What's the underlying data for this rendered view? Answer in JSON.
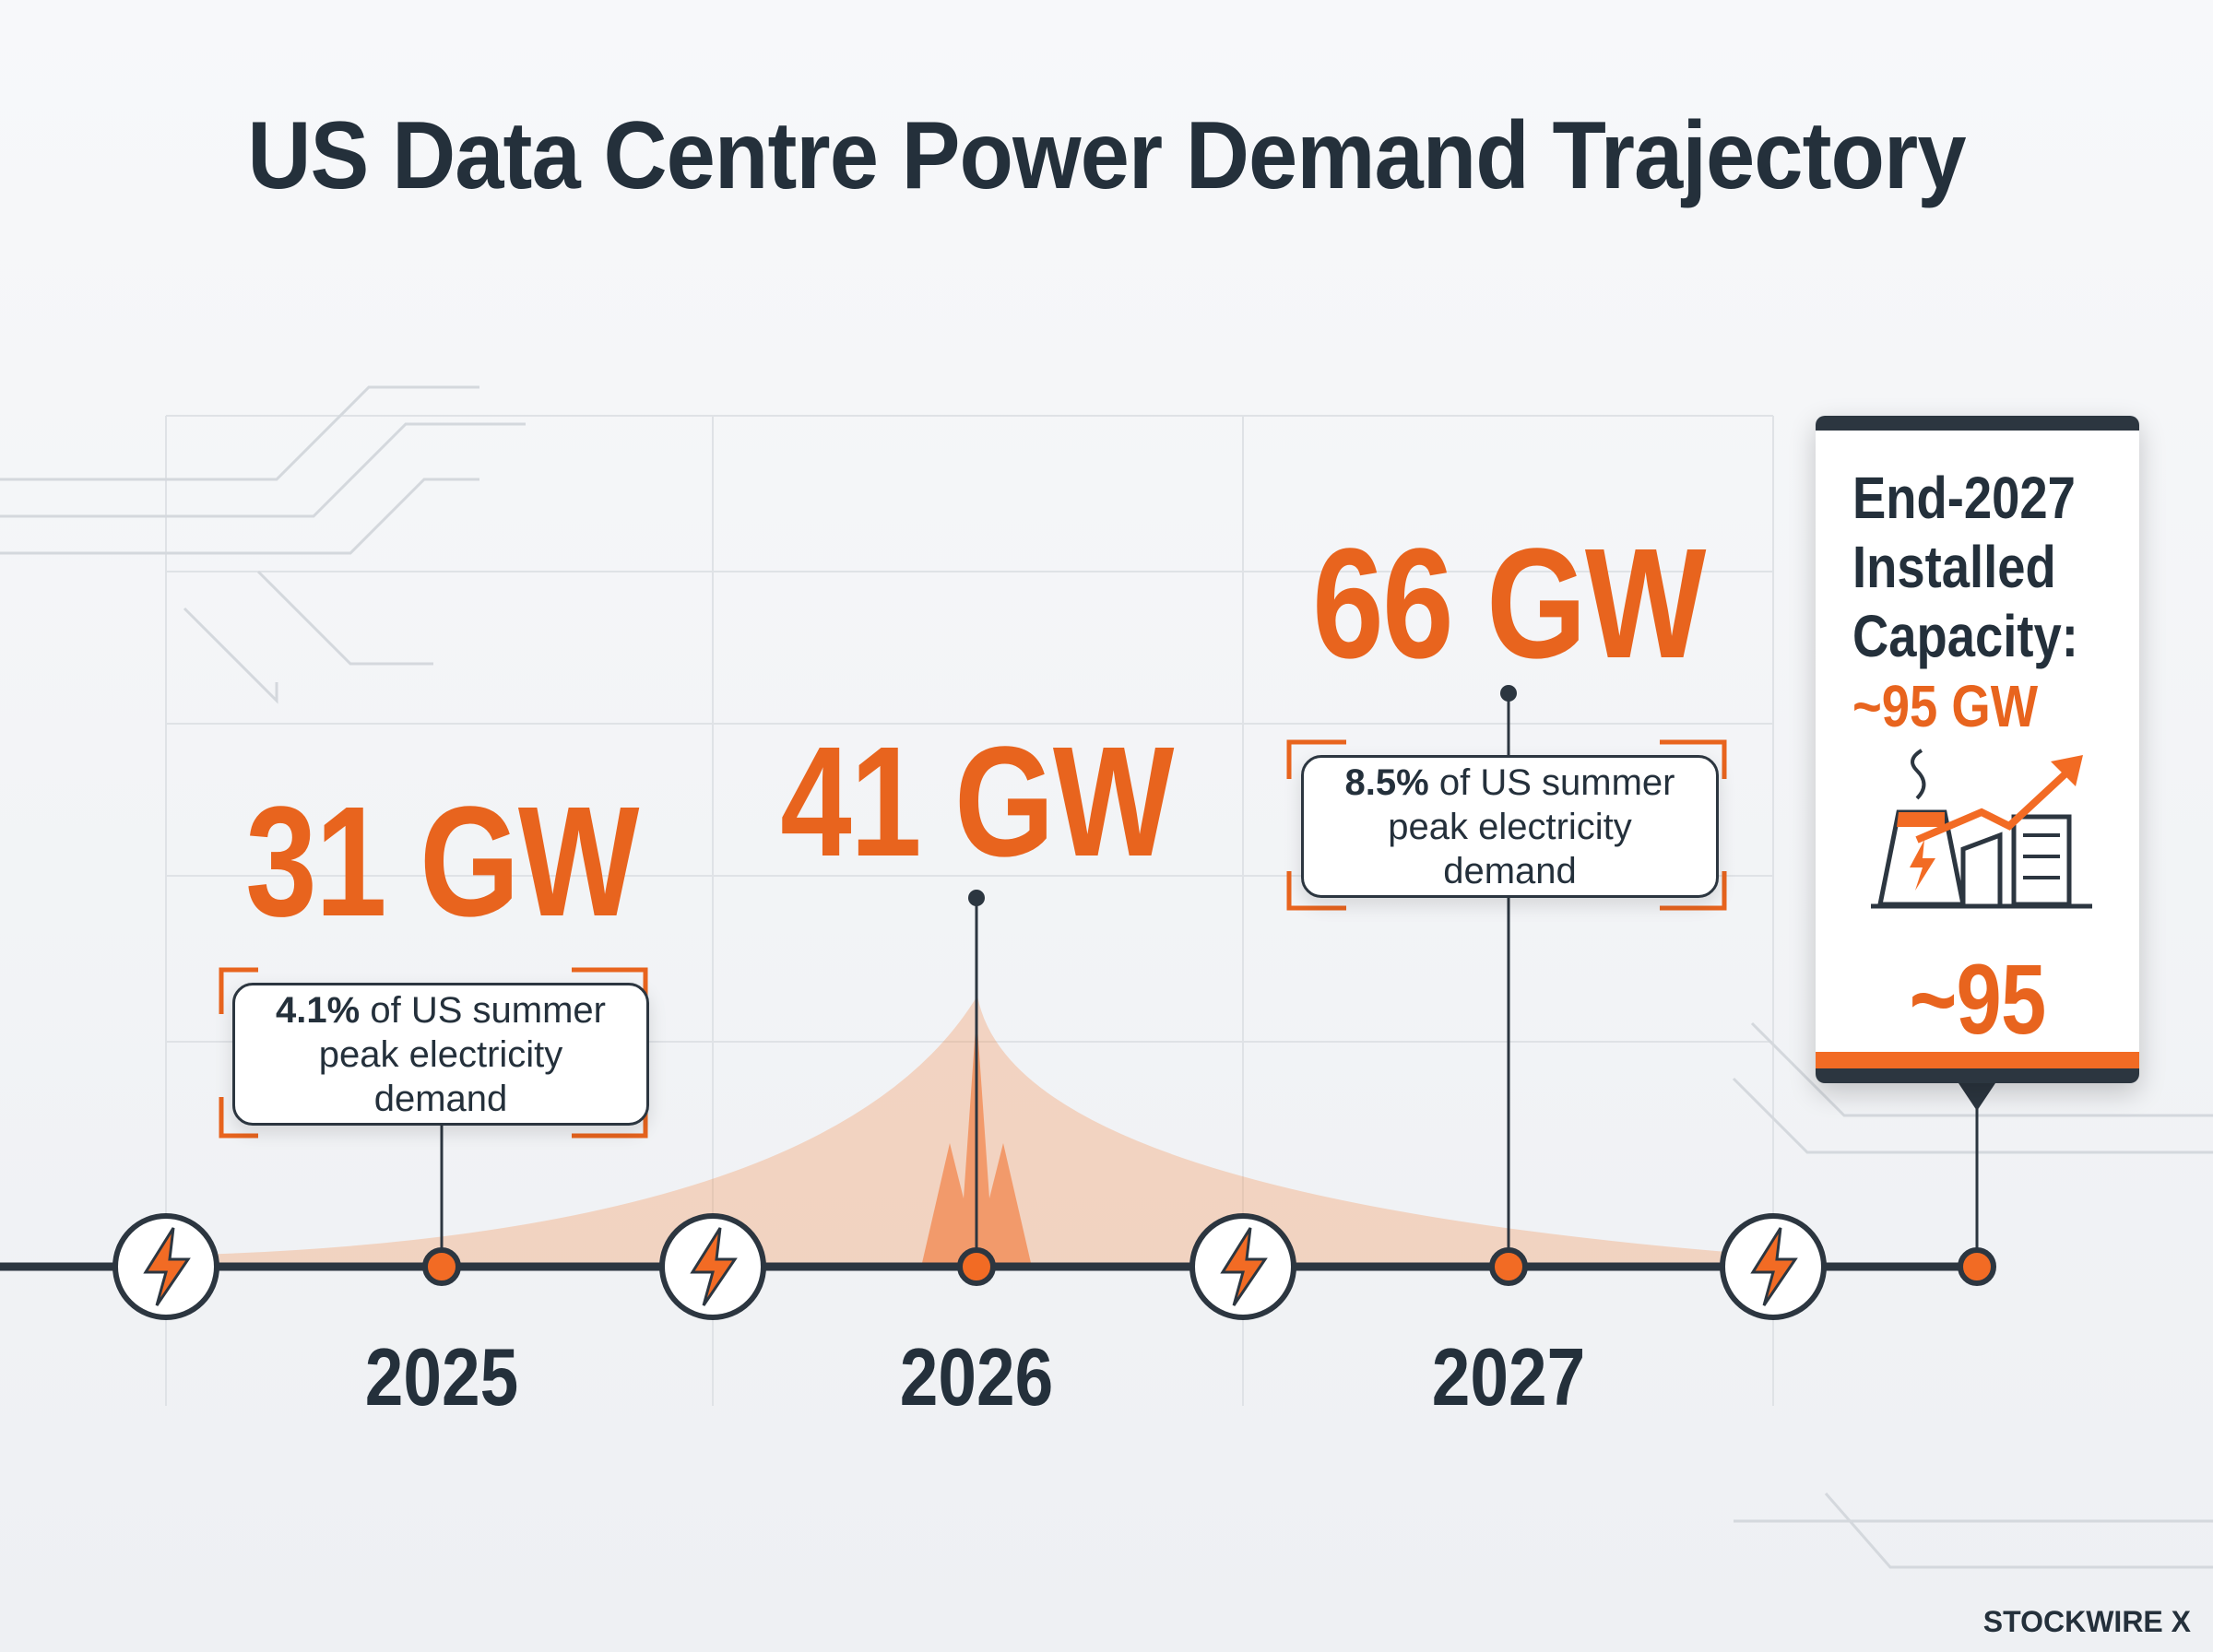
{
  "title": "US Data Centre Power Demand Trajectory",
  "milestones": [
    {
      "year": "2025",
      "value": "31 GW",
      "note_highlight": "4.1%",
      "note": "of US summer peak electricity demand"
    },
    {
      "year": "2026",
      "value": "41 GW"
    },
    {
      "year": "2027",
      "value": "66 GW",
      "note_highlight": "8.5%",
      "note": "of US summer peak electricity demand"
    }
  ],
  "callout": {
    "title": "End-2027 Installed Capacity:",
    "subtitle": "~95 GW",
    "value": "~95 GW"
  },
  "brand": "STOCKWIRE X"
}
